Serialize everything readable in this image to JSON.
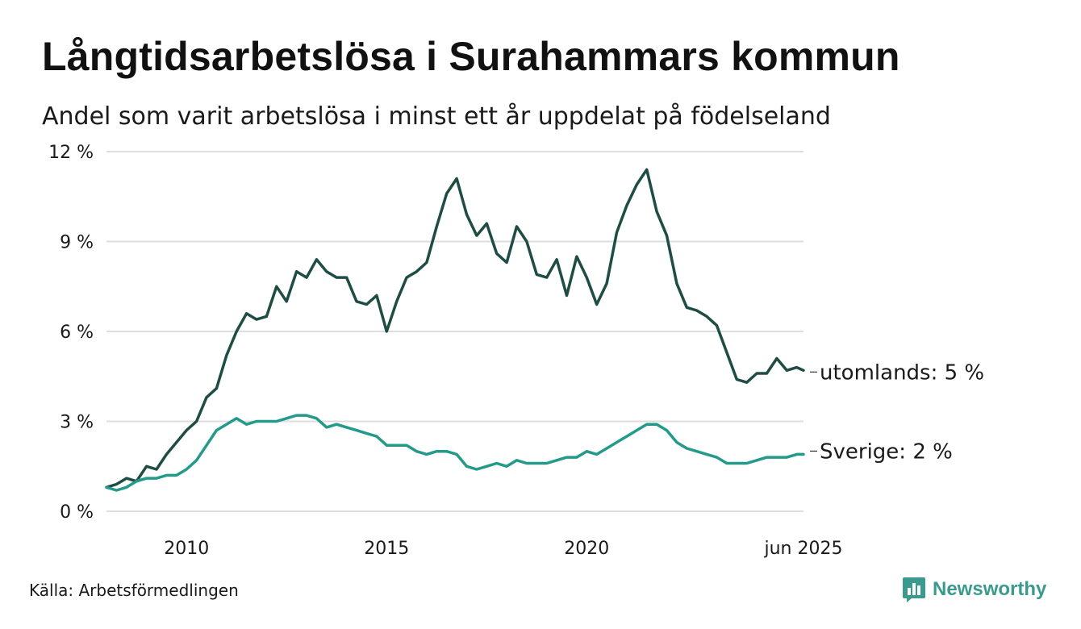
{
  "title": "Långtidsarbetslösa i Surahammars kommun",
  "subtitle": "Andel som varit arbetslösa i minst ett år uppdelat på födelseland",
  "source": "Källa: Arbetsförmedlingen",
  "brand": {
    "name": "Newsworthy",
    "icon": "newsworthy-logo-icon",
    "color": "#3a9a8e"
  },
  "chart_data": {
    "type": "line",
    "title": "Långtidsarbetslösa i Surahammars kommun",
    "subtitle": "Andel som varit arbetslösa i minst ett år uppdelat på födelseland",
    "xlabel": "",
    "ylabel": "",
    "x_range": [
      "2008-01",
      "2025-06"
    ],
    "ylim": [
      0,
      12
    ],
    "grid": true,
    "legend": "direct labels at line ends",
    "x_ticks": [
      {
        "date": "2010-01",
        "label": "2010"
      },
      {
        "date": "2015-01",
        "label": "2015"
      },
      {
        "date": "2020-01",
        "label": "2020"
      },
      {
        "date": "2025-06",
        "label": "jun 2025"
      }
    ],
    "y_ticks": [
      {
        "value": 0,
        "label": "0 %"
      },
      {
        "value": 3,
        "label": "3 %"
      },
      {
        "value": 6,
        "label": "6 %"
      },
      {
        "value": 9,
        "label": "9 %"
      },
      {
        "value": 12,
        "label": "12 %"
      }
    ],
    "series": [
      {
        "key": "utomlands",
        "end_label": "utomlands: 5 %",
        "color": "#1f4d45",
        "points": [
          [
            "2008-01",
            0.8
          ],
          [
            "2008-04",
            0.9
          ],
          [
            "2008-07",
            1.1
          ],
          [
            "2008-10",
            1.0
          ],
          [
            "2009-01",
            1.5
          ],
          [
            "2009-04",
            1.4
          ],
          [
            "2009-07",
            1.9
          ],
          [
            "2009-10",
            2.3
          ],
          [
            "2010-01",
            2.7
          ],
          [
            "2010-04",
            3.0
          ],
          [
            "2010-07",
            3.8
          ],
          [
            "2010-10",
            4.1
          ],
          [
            "2011-01",
            5.2
          ],
          [
            "2011-04",
            6.0
          ],
          [
            "2011-07",
            6.6
          ],
          [
            "2011-10",
            6.4
          ],
          [
            "2012-01",
            6.5
          ],
          [
            "2012-04",
            7.5
          ],
          [
            "2012-07",
            7.0
          ],
          [
            "2012-10",
            8.0
          ],
          [
            "2013-01",
            7.8
          ],
          [
            "2013-04",
            8.4
          ],
          [
            "2013-07",
            8.0
          ],
          [
            "2013-10",
            7.8
          ],
          [
            "2014-01",
            7.8
          ],
          [
            "2014-04",
            7.0
          ],
          [
            "2014-07",
            6.9
          ],
          [
            "2014-10",
            7.2
          ],
          [
            "2015-01",
            6.0
          ],
          [
            "2015-04",
            7.0
          ],
          [
            "2015-07",
            7.8
          ],
          [
            "2015-10",
            8.0
          ],
          [
            "2016-01",
            8.3
          ],
          [
            "2016-04",
            9.5
          ],
          [
            "2016-07",
            10.6
          ],
          [
            "2016-10",
            11.1
          ],
          [
            "2017-01",
            9.9
          ],
          [
            "2017-04",
            9.2
          ],
          [
            "2017-07",
            9.6
          ],
          [
            "2017-10",
            8.6
          ],
          [
            "2018-01",
            8.3
          ],
          [
            "2018-04",
            9.5
          ],
          [
            "2018-07",
            9.0
          ],
          [
            "2018-10",
            7.9
          ],
          [
            "2019-01",
            7.8
          ],
          [
            "2019-04",
            8.4
          ],
          [
            "2019-07",
            7.2
          ],
          [
            "2019-10",
            8.5
          ],
          [
            "2020-01",
            7.8
          ],
          [
            "2020-04",
            6.9
          ],
          [
            "2020-07",
            7.6
          ],
          [
            "2020-10",
            9.3
          ],
          [
            "2021-01",
            10.2
          ],
          [
            "2021-04",
            10.9
          ],
          [
            "2021-07",
            11.4
          ],
          [
            "2021-10",
            10.0
          ],
          [
            "2022-01",
            9.2
          ],
          [
            "2022-04",
            7.6
          ],
          [
            "2022-07",
            6.8
          ],
          [
            "2022-10",
            6.7
          ],
          [
            "2023-01",
            6.5
          ],
          [
            "2023-04",
            6.2
          ],
          [
            "2023-07",
            5.3
          ],
          [
            "2023-10",
            4.4
          ],
          [
            "2024-01",
            4.3
          ],
          [
            "2024-04",
            4.6
          ],
          [
            "2024-07",
            4.6
          ],
          [
            "2024-10",
            5.1
          ],
          [
            "2025-01",
            4.7
          ],
          [
            "2025-04",
            4.8
          ],
          [
            "2025-06",
            4.7
          ]
        ]
      },
      {
        "key": "sverige",
        "end_label": "Sverige: 2 %",
        "color": "#239a8a",
        "points": [
          [
            "2008-01",
            0.8
          ],
          [
            "2008-04",
            0.7
          ],
          [
            "2008-07",
            0.8
          ],
          [
            "2008-10",
            1.0
          ],
          [
            "2009-01",
            1.1
          ],
          [
            "2009-04",
            1.1
          ],
          [
            "2009-07",
            1.2
          ],
          [
            "2009-10",
            1.2
          ],
          [
            "2010-01",
            1.4
          ],
          [
            "2010-04",
            1.7
          ],
          [
            "2010-07",
            2.2
          ],
          [
            "2010-10",
            2.7
          ],
          [
            "2011-01",
            2.9
          ],
          [
            "2011-04",
            3.1
          ],
          [
            "2011-07",
            2.9
          ],
          [
            "2011-10",
            3.0
          ],
          [
            "2012-01",
            3.0
          ],
          [
            "2012-04",
            3.0
          ],
          [
            "2012-07",
            3.1
          ],
          [
            "2012-10",
            3.2
          ],
          [
            "2013-01",
            3.2
          ],
          [
            "2013-04",
            3.1
          ],
          [
            "2013-07",
            2.8
          ],
          [
            "2013-10",
            2.9
          ],
          [
            "2014-01",
            2.8
          ],
          [
            "2014-04",
            2.7
          ],
          [
            "2014-07",
            2.6
          ],
          [
            "2014-10",
            2.5
          ],
          [
            "2015-01",
            2.2
          ],
          [
            "2015-04",
            2.2
          ],
          [
            "2015-07",
            2.2
          ],
          [
            "2015-10",
            2.0
          ],
          [
            "2016-01",
            1.9
          ],
          [
            "2016-04",
            2.0
          ],
          [
            "2016-07",
            2.0
          ],
          [
            "2016-10",
            1.9
          ],
          [
            "2017-01",
            1.5
          ],
          [
            "2017-04",
            1.4
          ],
          [
            "2017-07",
            1.5
          ],
          [
            "2017-10",
            1.6
          ],
          [
            "2018-01",
            1.5
          ],
          [
            "2018-04",
            1.7
          ],
          [
            "2018-07",
            1.6
          ],
          [
            "2018-10",
            1.6
          ],
          [
            "2019-01",
            1.6
          ],
          [
            "2019-04",
            1.7
          ],
          [
            "2019-07",
            1.8
          ],
          [
            "2019-10",
            1.8
          ],
          [
            "2020-01",
            2.0
          ],
          [
            "2020-04",
            1.9
          ],
          [
            "2020-07",
            2.1
          ],
          [
            "2020-10",
            2.3
          ],
          [
            "2021-01",
            2.5
          ],
          [
            "2021-04",
            2.7
          ],
          [
            "2021-07",
            2.9
          ],
          [
            "2021-10",
            2.9
          ],
          [
            "2022-01",
            2.7
          ],
          [
            "2022-04",
            2.3
          ],
          [
            "2022-07",
            2.1
          ],
          [
            "2022-10",
            2.0
          ],
          [
            "2023-01",
            1.9
          ],
          [
            "2023-04",
            1.8
          ],
          [
            "2023-07",
            1.6
          ],
          [
            "2023-10",
            1.6
          ],
          [
            "2024-01",
            1.6
          ],
          [
            "2024-04",
            1.7
          ],
          [
            "2024-07",
            1.8
          ],
          [
            "2024-10",
            1.8
          ],
          [
            "2025-01",
            1.8
          ],
          [
            "2025-04",
            1.9
          ],
          [
            "2025-06",
            1.9
          ]
        ]
      }
    ]
  }
}
